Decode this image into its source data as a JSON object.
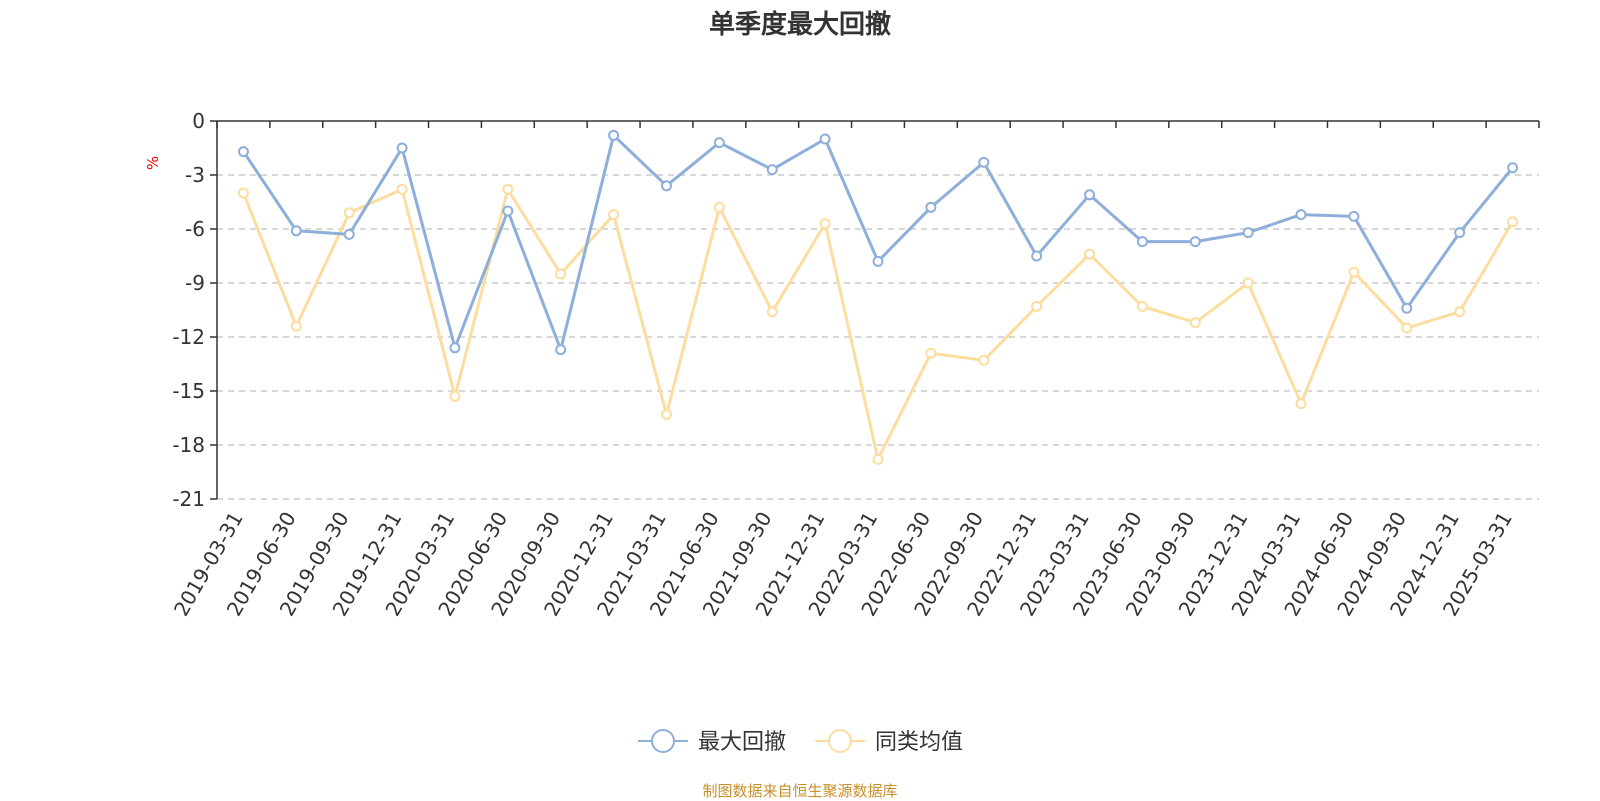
{
  "chart_data": {
    "type": "line",
    "title": "单季度最大回撤",
    "ylabel": "%",
    "ylim": [
      -21,
      0
    ],
    "yticks": [
      0,
      -3,
      -6,
      -9,
      -12,
      -15,
      -18,
      -21
    ],
    "grid": true,
    "legend_position": "bottom-center",
    "categories": [
      "2019-03-31",
      "2019-06-30",
      "2019-09-30",
      "2019-12-31",
      "2020-03-31",
      "2020-06-30",
      "2020-09-30",
      "2020-12-31",
      "2021-03-31",
      "2021-06-30",
      "2021-09-30",
      "2021-12-31",
      "2022-03-31",
      "2022-06-30",
      "2022-09-30",
      "2022-12-31",
      "2023-03-31",
      "2023-06-30",
      "2023-09-30",
      "2023-12-31",
      "2024-03-31",
      "2024-06-30",
      "2024-09-30",
      "2024-12-31",
      "2025-03-31"
    ],
    "series": [
      {
        "name": "最大回撤",
        "color": "#8eaedb",
        "values": [
          -1.7,
          -6.1,
          -6.3,
          -1.5,
          -12.6,
          -5.0,
          -12.7,
          -0.8,
          -3.6,
          -1.2,
          -2.7,
          -1.0,
          -7.8,
          -4.8,
          -2.3,
          -7.5,
          -4.1,
          -6.7,
          -6.7,
          -6.2,
          -5.2,
          -5.3,
          -10.4,
          -6.2,
          -2.6
        ]
      },
      {
        "name": "同类均值",
        "color": "#fddd9f",
        "values": [
          -4.0,
          -11.4,
          -5.1,
          -3.8,
          -15.3,
          -3.8,
          -8.5,
          -5.2,
          -16.3,
          -4.8,
          -10.6,
          -5.7,
          -18.8,
          -12.9,
          -13.3,
          -10.3,
          -7.4,
          -10.3,
          -11.2,
          -9.0,
          -15.7,
          -8.4,
          -11.5,
          -10.6,
          -5.6
        ]
      }
    ]
  },
  "source_note": "制图数据来自恒生聚源数据库"
}
